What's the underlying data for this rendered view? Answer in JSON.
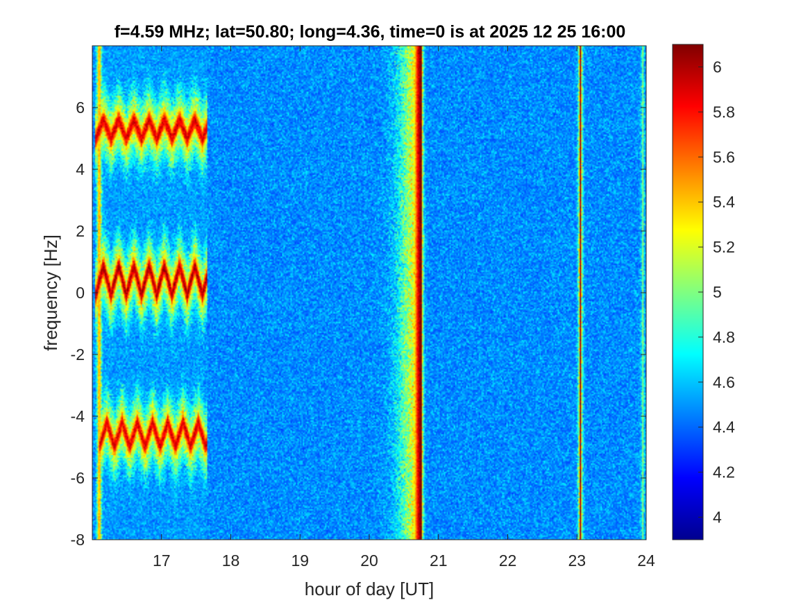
{
  "chart_data": {
    "type": "heatmap",
    "title": "f=4.59 MHz;  lat=50.80; long=4.36, time=0 is at 2025 12 25 16:00",
    "xlabel": "hour of day [UT]",
    "ylabel": "frequency [Hz]",
    "xlim": [
      16.0,
      24.0
    ],
    "ylim": [
      -8,
      8
    ],
    "x_ticks": [
      17,
      18,
      19,
      20,
      21,
      22,
      23,
      24
    ],
    "x_tick_labels": [
      "17",
      "18",
      "19",
      "20",
      "21",
      "22",
      "23",
      "24"
    ],
    "y_ticks": [
      -8,
      -6,
      -4,
      -2,
      0,
      2,
      4,
      6
    ],
    "y_tick_labels": [
      "-8",
      "-6",
      "-4",
      "-2",
      "0",
      "2",
      "4",
      "6"
    ],
    "colormap": "jet",
    "color_limits": [
      3.9,
      6.1
    ],
    "colorbar_ticks": [
      4,
      4.2,
      4.4,
      4.6,
      4.8,
      5,
      5.2,
      5.4,
      5.6,
      5.8,
      6
    ],
    "colorbar_tick_labels": [
      "4",
      "4.2",
      "4.4",
      "4.6",
      "4.8",
      "5",
      "5.2",
      "5.4",
      "5.6",
      "5.8",
      "6"
    ],
    "background_level": 4.3,
    "features": [
      {
        "kind": "vertical_line",
        "x": 16.1,
        "value": 6.0
      },
      {
        "kind": "vertical_line",
        "x": 20.75,
        "value": 6.1,
        "spread_left": 0.25
      },
      {
        "kind": "vertical_line",
        "x": 23.05,
        "value": 6.0
      },
      {
        "kind": "vertical_line",
        "x": 23.95,
        "value": 5.0
      },
      {
        "kind": "doppler_trace",
        "x_start": 16.05,
        "x_end": 17.65,
        "y_center": 0.4,
        "amplitude": 0.6,
        "value": 6.0
      },
      {
        "kind": "doppler_trace",
        "x_start": 16.05,
        "x_end": 17.65,
        "y_center": 5.3,
        "amplitude": 0.4,
        "value": 5.9
      },
      {
        "kind": "doppler_trace",
        "x_start": 16.1,
        "x_end": 17.65,
        "y_center": -4.6,
        "amplitude": 0.5,
        "value": 5.9
      }
    ]
  }
}
